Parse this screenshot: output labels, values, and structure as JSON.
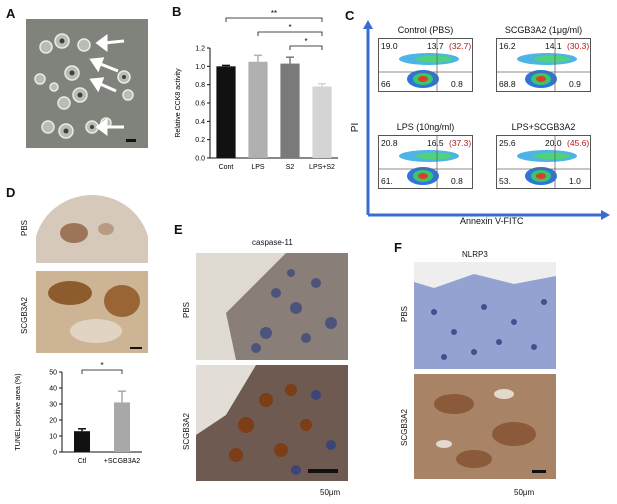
{
  "panels": {
    "A": {
      "label": "A"
    },
    "B": {
      "label": "B"
    },
    "C": {
      "label": "C"
    },
    "D": {
      "label": "D"
    },
    "E": {
      "label": "E"
    },
    "F": {
      "label": "F"
    }
  },
  "panel_b": {
    "sig_marks": [
      "**",
      "*",
      "*"
    ]
  },
  "panel_c": {
    "y_axis": "PI",
    "x_axis": "Annexin V-FITC",
    "plots": [
      {
        "title": "Control (PBS)",
        "ul": "19.0",
        "ur": "13.7",
        "ur_paren": "(32.7)",
        "ll": "66",
        "lr": "0.8"
      },
      {
        "title": "SCGB3A2 (1μg/ml)",
        "ul": "16.2",
        "ur": "14.1",
        "ur_paren": "(30.3)",
        "ll": "68.8",
        "lr": "0.9"
      },
      {
        "title": "LPS (10ng/ml)",
        "ul": "20.8",
        "ur": "16.5",
        "ur_paren": "(37.3)",
        "ll": "61.",
        "lr": "0.8"
      },
      {
        "title": "LPS+SCGB3A2",
        "ul": "25.6",
        "ur": "20.0",
        "ur_paren": "(45.6)",
        "ll": "53.",
        "lr": "1.0"
      }
    ]
  },
  "panel_d": {
    "row1": "PBS",
    "row2": "SCGB3A2",
    "sig": "*"
  },
  "panel_e": {
    "title": "caspase-11",
    "row1": "PBS",
    "row2": "SCGB3A2",
    "scale": "50μm"
  },
  "panel_f": {
    "title": "NLRP3",
    "row1": "PBS",
    "row2": "SCGB3A2",
    "scale": "50μm"
  },
  "chart_data": [
    {
      "type": "bar",
      "categories": [
        "Cont",
        "LPS",
        "S2",
        "LPS+S2"
      ],
      "values": [
        1.0,
        1.05,
        1.03,
        0.78
      ],
      "errors": [
        0.01,
        0.07,
        0.07,
        0.03
      ],
      "colors": [
        "#111111",
        "#b0b0b0",
        "#7a7a7a",
        "#d4d4d4"
      ],
      "ylabel": "Relative CCK8 activity",
      "ylim": [
        0,
        1.2
      ],
      "yticks": [
        "0.0",
        "0.2",
        "0.4",
        "0.6",
        "0.8",
        "1.0",
        "1.2"
      ]
    },
    {
      "type": "bar",
      "categories": [
        "Ctl",
        "+SCGB3A2"
      ],
      "values": [
        13,
        31
      ],
      "errors": [
        1.5,
        7
      ],
      "colors": [
        "#111111",
        "#a8a8a8"
      ],
      "ylabel": "TUNEL positive area (%)",
      "ylim": [
        0,
        50
      ],
      "yticks": [
        "0",
        "10",
        "20",
        "30",
        "40",
        "50"
      ]
    }
  ]
}
